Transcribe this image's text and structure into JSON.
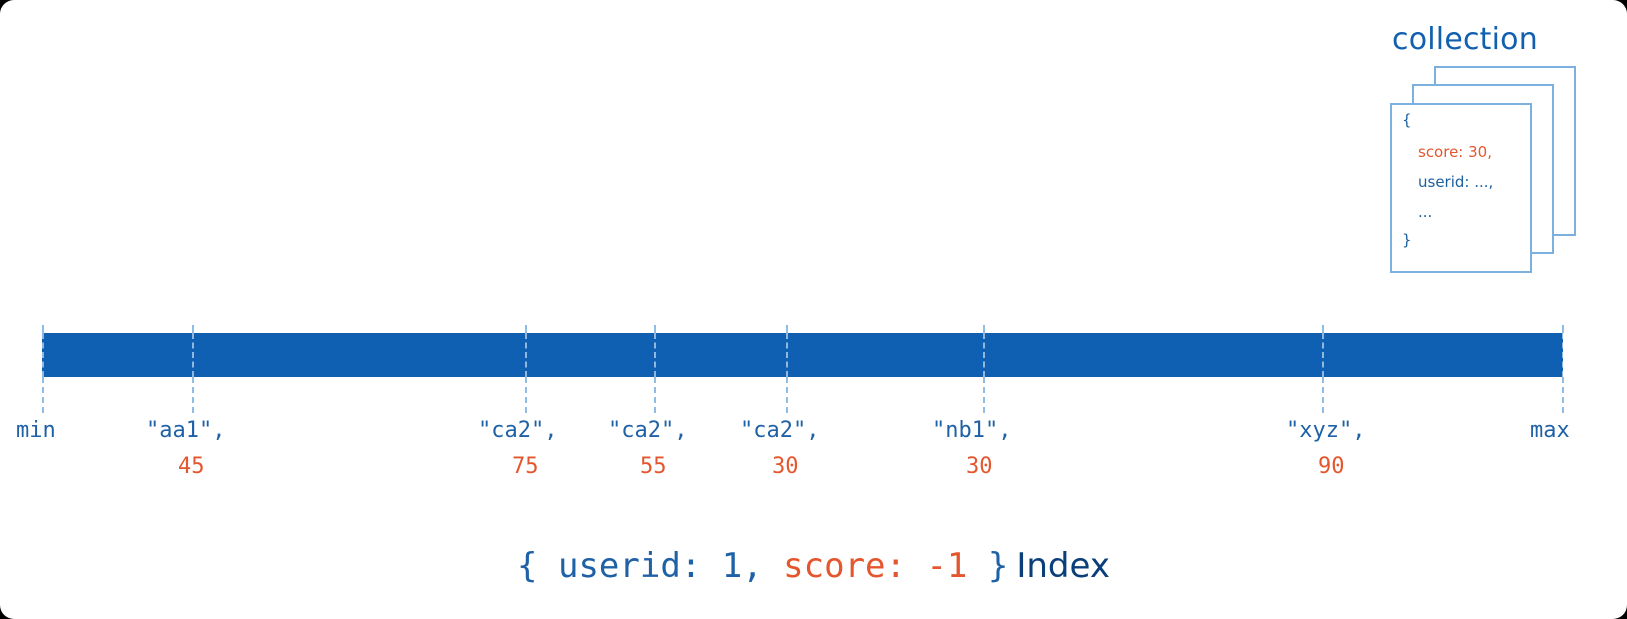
{
  "collection": {
    "title": "collection",
    "document": {
      "open_brace": "{",
      "score_line": "score: 30,",
      "userid_line": "userid: ...,",
      "ellipsis_line": "...",
      "close_brace": "}"
    }
  },
  "index": {
    "min_label": "min",
    "max_label": "max",
    "entries": [
      {
        "key": "\"aa1\",",
        "score": "45"
      },
      {
        "key": "\"ca2\",",
        "score": "75"
      },
      {
        "key": "\"ca2\",",
        "score": "55"
      },
      {
        "key": "\"ca2\",",
        "score": "30"
      },
      {
        "key": "\"nb1\",",
        "score": "30"
      },
      {
        "key": "\"xyz\",",
        "score": "90"
      }
    ]
  },
  "caption": {
    "open": "{ userid: 1,",
    "score_part": "score: -1",
    "close": "}",
    "index_word": "Index"
  },
  "colors": {
    "bar": "#0f5fb3",
    "key_text": "#1f61a6",
    "score_text": "#e4572e",
    "doc_border": "#7cb0df"
  }
}
